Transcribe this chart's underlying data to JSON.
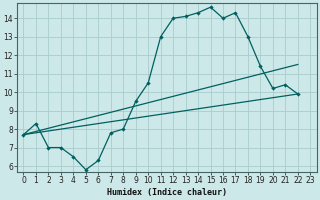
{
  "title": "",
  "xlabel": "Humidex (Indice chaleur)",
  "bg_color": "#cce8e8",
  "grid_color": "#aacccc",
  "line_color": "#006060",
  "xlim": [
    -0.5,
    23.5
  ],
  "ylim": [
    5.7,
    14.8
  ],
  "xticks": [
    0,
    1,
    2,
    3,
    4,
    5,
    6,
    7,
    8,
    9,
    10,
    11,
    12,
    13,
    14,
    15,
    16,
    17,
    18,
    19,
    20,
    21,
    22,
    23
  ],
  "yticks": [
    6,
    7,
    8,
    9,
    10,
    11,
    12,
    13,
    14
  ],
  "tick_fontsize": 5.5,
  "xlabel_fontsize": 6.0,
  "lines": [
    {
      "x": [
        0,
        1,
        2,
        3,
        4,
        5,
        6,
        7,
        8,
        9,
        10,
        11,
        12,
        13,
        14,
        15,
        16,
        17,
        18,
        19,
        20,
        21,
        22
      ],
      "y": [
        7.7,
        8.3,
        7.0,
        7.0,
        6.5,
        5.8,
        6.3,
        7.8,
        8.0,
        9.5,
        10.5,
        13.0,
        14.0,
        14.1,
        14.3,
        14.6,
        14.0,
        14.3,
        13.0,
        11.4,
        10.2,
        10.4,
        9.9
      ],
      "marker": true
    },
    {
      "x": [
        0,
        5,
        22
      ],
      "y": [
        7.7,
        5.8,
        9.9
      ],
      "marker": false
    },
    {
      "x": [
        0,
        5,
        22
      ],
      "y": [
        7.7,
        5.8,
        9.9
      ],
      "marker": false
    }
  ],
  "straight_lines": [
    {
      "x": [
        0,
        22
      ],
      "y": [
        7.7,
        11.5
      ]
    },
    {
      "x": [
        0,
        22
      ],
      "y": [
        7.7,
        9.9
      ]
    }
  ]
}
